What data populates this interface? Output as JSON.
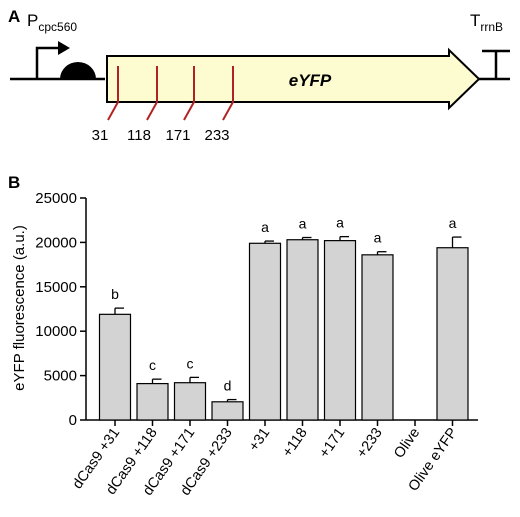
{
  "panel_a": {
    "letter": "A",
    "promoter_label": "P",
    "promoter_subscript": "cpc560",
    "terminator_label": "T",
    "terminator_subscript": "rrnB",
    "gene_label": "eYFP",
    "positions": [
      "31",
      "118",
      "171",
      "233"
    ]
  },
  "panel_b": {
    "letter": "B"
  },
  "chart_data": {
    "type": "bar",
    "ylabel": "eYFP fluorescence  (a.u.)",
    "xlabel": "",
    "ylim": [
      0,
      25000
    ],
    "yticks": [
      0,
      5000,
      10000,
      15000,
      20000,
      25000
    ],
    "categories": [
      "dCas9 +31",
      "dCas9 +118",
      "dCas9 +171",
      "dCas9 +233",
      "+31",
      "+118",
      "+171",
      "+233",
      "Olive",
      "Olive eYFP"
    ],
    "values": [
      11900,
      4100,
      4200,
      2050,
      19900,
      20300,
      20200,
      18600,
      0,
      19400
    ],
    "errors": [
      700,
      500,
      600,
      250,
      250,
      250,
      450,
      350,
      0,
      1200
    ],
    "significance": [
      "b",
      "c",
      "c",
      "d",
      "a",
      "a",
      "a",
      "a",
      "",
      "a"
    ],
    "grid": false,
    "bar_color": "#d3d3d3"
  }
}
